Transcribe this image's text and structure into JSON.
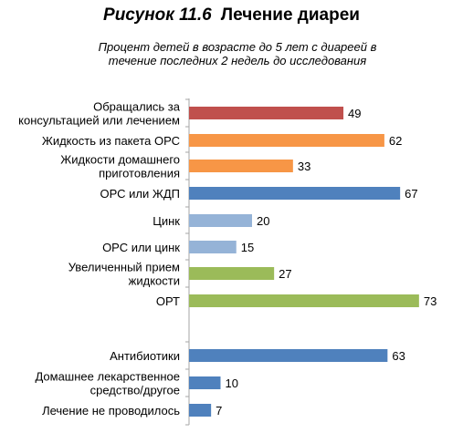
{
  "figure": {
    "number": "Рисунок 11.6",
    "title": "Лечение диареи",
    "subtitle_line1": "Процент детей в возрасте до 5 лет с диареей в",
    "subtitle_line2": "течение последних 2 недель до исследования"
  },
  "colors": {
    "red": "#c0504d",
    "orange": "#f79646",
    "blue": "#4f81bd",
    "light_blue": "#95b3d7",
    "green": "#9bbb59",
    "axis": "#a6a6a6"
  },
  "chart_data": {
    "type": "bar",
    "orientation": "horizontal",
    "title": "Рисунок 11.6 Лечение диареи",
    "subtitle": "Процент детей в возрасте до 5 лет с диареей в течение последних 2 недель до исследования",
    "xlim": [
      0,
      73
    ],
    "grid": false,
    "categories": [
      {
        "label": [
          "Обращались за",
          "консультацией или лечением"
        ],
        "value": 49,
        "color": "red"
      },
      {
        "label": [
          "Жидкость из пакета ОРС"
        ],
        "value": 62,
        "color": "orange"
      },
      {
        "label": [
          "Жидкости домашнего",
          "приготовления"
        ],
        "value": 33,
        "color": "orange"
      },
      {
        "label": [
          "ОРС или ЖДП"
        ],
        "value": 67,
        "color": "blue"
      },
      {
        "label": [
          "Цинк"
        ],
        "value": 20,
        "color": "light_blue"
      },
      {
        "label": [
          "ОРС или цинк"
        ],
        "value": 15,
        "color": "light_blue"
      },
      {
        "label": [
          "Увеличенный прием",
          "жидкости"
        ],
        "value": 27,
        "color": "green"
      },
      {
        "label": [
          "ОРТ"
        ],
        "value": 73,
        "color": "green"
      },
      {
        "label": [
          "Антибиотики"
        ],
        "value": 63,
        "color": "blue"
      },
      {
        "label": [
          "Домашнее лекарственное",
          "средство/другое"
        ],
        "value": 10,
        "color": "blue"
      },
      {
        "label": [
          "Лечение не проводилось"
        ],
        "value": 7,
        "color": "blue"
      }
    ]
  }
}
